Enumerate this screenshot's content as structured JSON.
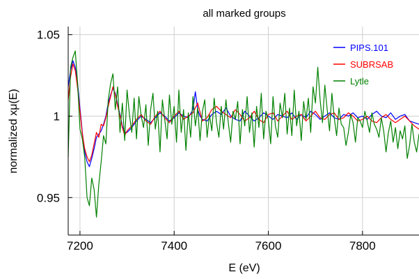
{
  "chart_data": {
    "type": "line",
    "title": "all marked groups",
    "xlabel": "E (eV)",
    "ylabel": "normalized xμ(E)",
    "xlim": [
      7175,
      7920
    ],
    "ylim": [
      0.927,
      1.055
    ],
    "xticks": [
      7200,
      7400,
      7600,
      7800
    ],
    "yticks": [
      0.95,
      1,
      1.05
    ],
    "xtick_labels": [
      "7200",
      "7400",
      "7600",
      "7800"
    ],
    "ytick_labels": [
      "0.95",
      "1",
      "1.05"
    ],
    "grid": true,
    "legend_position": "top-right",
    "series": [
      {
        "name": "PIPS.101",
        "color": "#0000ff",
        "x": [
          7175,
          7180,
          7185,
          7190,
          7195,
          7200,
          7205,
          7210,
          7215,
          7220,
          7225,
          7230,
          7235,
          7240,
          7245,
          7250,
          7255,
          7260,
          7265,
          7270,
          7275,
          7280,
          7285,
          7290,
          7295,
          7300,
          7310,
          7320,
          7330,
          7340,
          7350,
          7360,
          7370,
          7380,
          7390,
          7400,
          7410,
          7420,
          7430,
          7440,
          7445,
          7450,
          7455,
          7460,
          7470,
          7480,
          7490,
          7500,
          7510,
          7520,
          7530,
          7540,
          7550,
          7560,
          7570,
          7580,
          7590,
          7600,
          7610,
          7620,
          7630,
          7640,
          7650,
          7660,
          7670,
          7680,
          7690,
          7700,
          7710,
          7720,
          7730,
          7740,
          7750,
          7760,
          7770,
          7780,
          7790,
          7800,
          7810,
          7820,
          7830,
          7840,
          7850,
          7860,
          7870,
          7880,
          7890,
          7900,
          7910,
          7920
        ],
        "y": [
          1.018,
          1.028,
          1.034,
          1.03,
          1.02,
          1.005,
          0.99,
          0.978,
          0.972,
          0.969,
          0.974,
          0.98,
          0.987,
          0.989,
          0.991,
          0.995,
          1.0,
          1.008,
          1.013,
          1.017,
          1.014,
          1.007,
          1.001,
          0.994,
          0.99,
          0.99,
          0.993,
          0.997,
          1.0,
          0.998,
          0.996,
          0.999,
          1.002,
          1.0,
          0.997,
          0.999,
          1.002,
          1.0,
          0.999,
          1.004,
          1.015,
          1.004,
          1.0,
          0.998,
          0.997,
          1.001,
          1.003,
          1.001,
          1.005,
          1.0,
          0.998,
          0.997,
          1.003,
          1.0,
          0.997,
          0.999,
          1.002,
          1.0,
          0.998,
          1.001,
          1.0,
          0.999,
          1.002,
          0.998,
          1.001,
          0.999,
          1.003,
          1.001,
          0.998,
          1.0,
          1.002,
          0.999,
          0.998,
          1.001,
          1.0,
          1.002,
          0.999,
          1.0,
          0.998,
          1.001,
          1.003,
          1.0,
          0.999,
          1.002,
          0.998,
          1.0,
          1.001,
          0.997,
          0.996,
          0.995
        ]
      },
      {
        "name": "SUBRSAB",
        "color": "#ff0000",
        "x": [
          7175,
          7180,
          7185,
          7190,
          7195,
          7200,
          7205,
          7210,
          7215,
          7220,
          7225,
          7230,
          7235,
          7240,
          7245,
          7250,
          7255,
          7260,
          7265,
          7270,
          7275,
          7280,
          7285,
          7290,
          7295,
          7300,
          7310,
          7320,
          7330,
          7340,
          7350,
          7360,
          7370,
          7380,
          7390,
          7400,
          7410,
          7420,
          7430,
          7440,
          7450,
          7460,
          7470,
          7480,
          7490,
          7500,
          7510,
          7520,
          7530,
          7540,
          7550,
          7560,
          7570,
          7580,
          7590,
          7600,
          7610,
          7620,
          7630,
          7640,
          7650,
          7660,
          7670,
          7680,
          7690,
          7700,
          7710,
          7720,
          7730,
          7740,
          7750,
          7760,
          7770,
          7780,
          7790,
          7800,
          7810,
          7820,
          7830,
          7840,
          7850,
          7860,
          7870,
          7880,
          7890,
          7900,
          7910,
          7920
        ],
        "y": [
          1.01,
          1.024,
          1.032,
          1.028,
          1.017,
          1.003,
          0.989,
          0.98,
          0.975,
          0.972,
          0.976,
          0.983,
          0.99,
          0.987,
          0.995,
          0.994,
          0.999,
          1.006,
          1.012,
          1.018,
          1.013,
          1.006,
          1.0,
          0.993,
          0.988,
          0.991,
          0.994,
          0.998,
          1.001,
          0.997,
          0.995,
          1.0,
          1.003,
          0.999,
          0.996,
          1.0,
          1.003,
          0.998,
          1.0,
          1.002,
          1.008,
          0.997,
          0.999,
          1.004,
          1.006,
          1.003,
          1.001,
          0.999,
          1.004,
          1.001,
          0.997,
          0.999,
          1.003,
          0.998,
          0.996,
          1.001,
          1.002,
          0.997,
          1.0,
          1.003,
          0.998,
          1.0,
          1.001,
          0.997,
          1.0,
          1.003,
          0.999,
          0.998,
          1.001,
          1.002,
          0.998,
          0.999,
          1.002,
          1.0,
          0.997,
          0.998,
          1.0,
          0.997,
          0.996,
          0.999,
          1.001,
          0.998,
          0.996,
          0.998,
          1.0,
          0.997,
          0.994,
          0.992
        ]
      },
      {
        "name": "Lytle",
        "color": "#008000",
        "x": [
          7175,
          7180,
          7185,
          7190,
          7195,
          7200,
          7205,
          7210,
          7215,
          7220,
          7225,
          7230,
          7235,
          7240,
          7245,
          7250,
          7255,
          7260,
          7265,
          7270,
          7275,
          7280,
          7285,
          7290,
          7295,
          7300,
          7305,
          7310,
          7315,
          7320,
          7325,
          7330,
          7335,
          7340,
          7345,
          7350,
          7355,
          7360,
          7365,
          7370,
          7375,
          7380,
          7385,
          7390,
          7395,
          7400,
          7405,
          7410,
          7415,
          7420,
          7425,
          7430,
          7435,
          7440,
          7445,
          7450,
          7455,
          7460,
          7465,
          7470,
          7475,
          7480,
          7485,
          7490,
          7495,
          7500,
          7505,
          7510,
          7515,
          7520,
          7525,
          7530,
          7535,
          7540,
          7545,
          7550,
          7555,
          7560,
          7565,
          7570,
          7575,
          7580,
          7585,
          7590,
          7595,
          7600,
          7605,
          7610,
          7615,
          7620,
          7625,
          7630,
          7635,
          7640,
          7645,
          7650,
          7655,
          7660,
          7665,
          7670,
          7675,
          7680,
          7685,
          7690,
          7695,
          7700,
          7705,
          7710,
          7715,
          7720,
          7725,
          7730,
          7735,
          7740,
          7745,
          7750,
          7755,
          7760,
          7765,
          7770,
          7775,
          7780,
          7785,
          7790,
          7795,
          7800,
          7805,
          7810,
          7815,
          7820,
          7825,
          7830,
          7835,
          7840,
          7845,
          7850,
          7855,
          7860,
          7865,
          7870,
          7875,
          7880,
          7885,
          7890,
          7895,
          7900,
          7905,
          7910,
          7915,
          7920
        ],
        "y": [
          0.975,
          1.03,
          1.036,
          1.04,
          1.02,
          0.992,
          0.986,
          0.975,
          0.95,
          0.945,
          0.962,
          0.955,
          0.938,
          0.958,
          0.972,
          0.988,
          0.983,
          1.01,
          1.02,
          1.026,
          1.004,
          1.018,
          0.99,
          1.008,
          0.985,
          1.016,
          1.001,
          0.99,
          1.011,
          0.986,
          1.012,
          1.0,
          0.993,
          1.007,
          0.982,
          1.004,
          1.014,
          0.992,
          1.003,
          0.978,
          1.01,
          0.998,
          0.986,
          1.013,
          0.995,
          1.006,
          0.984,
          1.016,
          0.99,
          1.004,
          0.979,
          1.002,
          0.987,
          1.012,
          0.994,
          1.005,
          0.985,
          1.003,
          1.01,
          0.987,
          1.001,
          0.991,
          1.011,
          0.996,
          0.987,
          1.006,
          0.992,
          1.01,
          0.996,
          0.984,
          1.003,
          0.998,
          1.009,
          0.983,
          1.004,
          0.994,
          1.012,
          0.99,
          1.002,
          0.981,
          1.006,
          0.993,
          1.014,
          0.986,
          1.003,
          0.998,
          0.983,
          1.012,
          0.994,
          0.987,
          1.008,
          0.999,
          1.014,
          0.989,
          1.005,
          0.988,
          1.016,
          0.994,
          1.003,
          0.985,
          1.009,
          0.998,
          1.011,
          0.99,
          1.018,
          1.008,
          1.03,
          1.01,
          0.996,
          1.019,
          1.004,
          0.991,
          1.014,
          0.999,
          0.988,
          1.005,
          0.995,
          0.993,
          0.982,
          0.99,
          1.001,
          0.996,
          0.984,
          0.999,
          0.997,
          0.993,
          1.003,
          0.997,
          0.99,
          1.002,
          0.995,
          0.992,
          0.987,
          0.999,
          0.991,
          0.978,
          0.99,
          0.997,
          0.984,
          0.993,
          0.98,
          0.991,
          0.986,
          0.994,
          0.974,
          0.982,
          0.995,
          0.984,
          0.978,
          0.989
        ]
      }
    ]
  }
}
